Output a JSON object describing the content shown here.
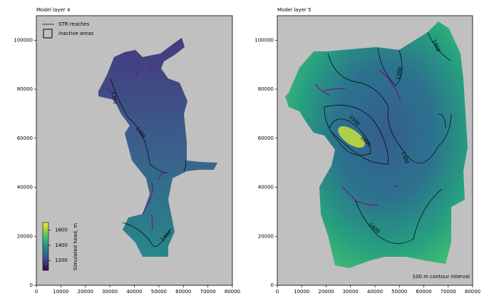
{
  "chart_data": [
    {
      "type": "contour",
      "title": "Model layer 4",
      "xlim": [
        0,
        80000
      ],
      "ylim": [
        0,
        110000
      ],
      "xticks": [
        0,
        10000,
        20000,
        30000,
        40000,
        50000,
        60000,
        70000,
        80000
      ],
      "yticks": [
        0,
        20000,
        40000,
        60000,
        80000,
        100000
      ],
      "contour_labels": [
        1300,
        1300,
        1400
      ],
      "legend": [
        {
          "name": "STR reaches",
          "color": "#800080"
        },
        {
          "name": "inactive areas",
          "color": "#c0c0c0"
        }
      ],
      "colorbar": {
        "label": "Simulated head, m",
        "lim": [
          1070,
          1700
        ],
        "ticks": [
          1200,
          1400,
          1600
        ]
      }
    },
    {
      "type": "contour",
      "title": "Model layer 5",
      "xlim": [
        0,
        80000
      ],
      "ylim": [
        0,
        110000
      ],
      "xticks": [
        0,
        10000,
        20000,
        30000,
        40000,
        50000,
        60000,
        70000,
        80000
      ],
      "yticks": [
        0,
        20000,
        40000,
        60000,
        80000,
        100000
      ],
      "contour_labels": [
        1200,
        1400,
        1500,
        1600,
        1300,
        1400
      ],
      "annotation": "100 m contour interval"
    }
  ]
}
